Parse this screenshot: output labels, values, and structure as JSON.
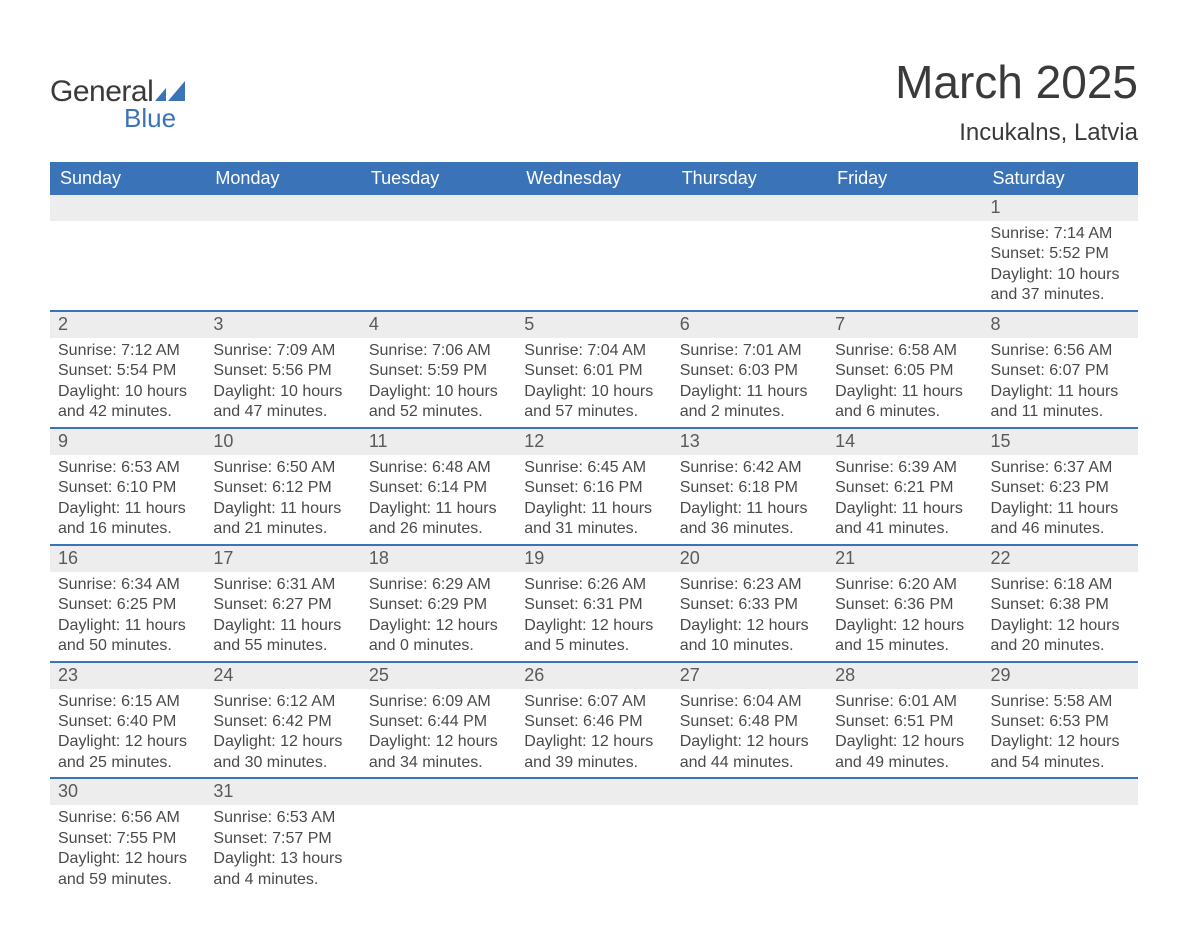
{
  "colors": {
    "header_bg": "#3b73b9",
    "header_text": "#ffffff",
    "daynum_bg": "#ededed",
    "body_text": "#4a4a4a",
    "week_border": "#3b73b9",
    "page_bg": "#ffffff",
    "logo_text": "#3a3a3a",
    "logo_blue": "#3b73b9"
  },
  "typography": {
    "title_fontsize": 46,
    "location_fontsize": 24,
    "dayhead_fontsize": 18,
    "daynum_fontsize": 18,
    "body_fontsize": 16,
    "font_family": "Arial"
  },
  "logo": {
    "line1": "General",
    "line2": "Blue"
  },
  "title": "March 2025",
  "location": "Incukalns, Latvia",
  "day_headers": [
    "Sunday",
    "Monday",
    "Tuesday",
    "Wednesday",
    "Thursday",
    "Friday",
    "Saturday"
  ],
  "weeks": [
    [
      {
        "num": "",
        "sunrise": "",
        "sunset": "",
        "daylight": ""
      },
      {
        "num": "",
        "sunrise": "",
        "sunset": "",
        "daylight": ""
      },
      {
        "num": "",
        "sunrise": "",
        "sunset": "",
        "daylight": ""
      },
      {
        "num": "",
        "sunrise": "",
        "sunset": "",
        "daylight": ""
      },
      {
        "num": "",
        "sunrise": "",
        "sunset": "",
        "daylight": ""
      },
      {
        "num": "",
        "sunrise": "",
        "sunset": "",
        "daylight": ""
      },
      {
        "num": "1",
        "sunrise": "Sunrise: 7:14 AM",
        "sunset": "Sunset: 5:52 PM",
        "daylight": "Daylight: 10 hours and 37 minutes."
      }
    ],
    [
      {
        "num": "2",
        "sunrise": "Sunrise: 7:12 AM",
        "sunset": "Sunset: 5:54 PM",
        "daylight": "Daylight: 10 hours and 42 minutes."
      },
      {
        "num": "3",
        "sunrise": "Sunrise: 7:09 AM",
        "sunset": "Sunset: 5:56 PM",
        "daylight": "Daylight: 10 hours and 47 minutes."
      },
      {
        "num": "4",
        "sunrise": "Sunrise: 7:06 AM",
        "sunset": "Sunset: 5:59 PM",
        "daylight": "Daylight: 10 hours and 52 minutes."
      },
      {
        "num": "5",
        "sunrise": "Sunrise: 7:04 AM",
        "sunset": "Sunset: 6:01 PM",
        "daylight": "Daylight: 10 hours and 57 minutes."
      },
      {
        "num": "6",
        "sunrise": "Sunrise: 7:01 AM",
        "sunset": "Sunset: 6:03 PM",
        "daylight": "Daylight: 11 hours and 2 minutes."
      },
      {
        "num": "7",
        "sunrise": "Sunrise: 6:58 AM",
        "sunset": "Sunset: 6:05 PM",
        "daylight": "Daylight: 11 hours and 6 minutes."
      },
      {
        "num": "8",
        "sunrise": "Sunrise: 6:56 AM",
        "sunset": "Sunset: 6:07 PM",
        "daylight": "Daylight: 11 hours and 11 minutes."
      }
    ],
    [
      {
        "num": "9",
        "sunrise": "Sunrise: 6:53 AM",
        "sunset": "Sunset: 6:10 PM",
        "daylight": "Daylight: 11 hours and 16 minutes."
      },
      {
        "num": "10",
        "sunrise": "Sunrise: 6:50 AM",
        "sunset": "Sunset: 6:12 PM",
        "daylight": "Daylight: 11 hours and 21 minutes."
      },
      {
        "num": "11",
        "sunrise": "Sunrise: 6:48 AM",
        "sunset": "Sunset: 6:14 PM",
        "daylight": "Daylight: 11 hours and 26 minutes."
      },
      {
        "num": "12",
        "sunrise": "Sunrise: 6:45 AM",
        "sunset": "Sunset: 6:16 PM",
        "daylight": "Daylight: 11 hours and 31 minutes."
      },
      {
        "num": "13",
        "sunrise": "Sunrise: 6:42 AM",
        "sunset": "Sunset: 6:18 PM",
        "daylight": "Daylight: 11 hours and 36 minutes."
      },
      {
        "num": "14",
        "sunrise": "Sunrise: 6:39 AM",
        "sunset": "Sunset: 6:21 PM",
        "daylight": "Daylight: 11 hours and 41 minutes."
      },
      {
        "num": "15",
        "sunrise": "Sunrise: 6:37 AM",
        "sunset": "Sunset: 6:23 PM",
        "daylight": "Daylight: 11 hours and 46 minutes."
      }
    ],
    [
      {
        "num": "16",
        "sunrise": "Sunrise: 6:34 AM",
        "sunset": "Sunset: 6:25 PM",
        "daylight": "Daylight: 11 hours and 50 minutes."
      },
      {
        "num": "17",
        "sunrise": "Sunrise: 6:31 AM",
        "sunset": "Sunset: 6:27 PM",
        "daylight": "Daylight: 11 hours and 55 minutes."
      },
      {
        "num": "18",
        "sunrise": "Sunrise: 6:29 AM",
        "sunset": "Sunset: 6:29 PM",
        "daylight": "Daylight: 12 hours and 0 minutes."
      },
      {
        "num": "19",
        "sunrise": "Sunrise: 6:26 AM",
        "sunset": "Sunset: 6:31 PM",
        "daylight": "Daylight: 12 hours and 5 minutes."
      },
      {
        "num": "20",
        "sunrise": "Sunrise: 6:23 AM",
        "sunset": "Sunset: 6:33 PM",
        "daylight": "Daylight: 12 hours and 10 minutes."
      },
      {
        "num": "21",
        "sunrise": "Sunrise: 6:20 AM",
        "sunset": "Sunset: 6:36 PM",
        "daylight": "Daylight: 12 hours and 15 minutes."
      },
      {
        "num": "22",
        "sunrise": "Sunrise: 6:18 AM",
        "sunset": "Sunset: 6:38 PM",
        "daylight": "Daylight: 12 hours and 20 minutes."
      }
    ],
    [
      {
        "num": "23",
        "sunrise": "Sunrise: 6:15 AM",
        "sunset": "Sunset: 6:40 PM",
        "daylight": "Daylight: 12 hours and 25 minutes."
      },
      {
        "num": "24",
        "sunrise": "Sunrise: 6:12 AM",
        "sunset": "Sunset: 6:42 PM",
        "daylight": "Daylight: 12 hours and 30 minutes."
      },
      {
        "num": "25",
        "sunrise": "Sunrise: 6:09 AM",
        "sunset": "Sunset: 6:44 PM",
        "daylight": "Daylight: 12 hours and 34 minutes."
      },
      {
        "num": "26",
        "sunrise": "Sunrise: 6:07 AM",
        "sunset": "Sunset: 6:46 PM",
        "daylight": "Daylight: 12 hours and 39 minutes."
      },
      {
        "num": "27",
        "sunrise": "Sunrise: 6:04 AM",
        "sunset": "Sunset: 6:48 PM",
        "daylight": "Daylight: 12 hours and 44 minutes."
      },
      {
        "num": "28",
        "sunrise": "Sunrise: 6:01 AM",
        "sunset": "Sunset: 6:51 PM",
        "daylight": "Daylight: 12 hours and 49 minutes."
      },
      {
        "num": "29",
        "sunrise": "Sunrise: 5:58 AM",
        "sunset": "Sunset: 6:53 PM",
        "daylight": "Daylight: 12 hours and 54 minutes."
      }
    ],
    [
      {
        "num": "30",
        "sunrise": "Sunrise: 6:56 AM",
        "sunset": "Sunset: 7:55 PM",
        "daylight": "Daylight: 12 hours and 59 minutes."
      },
      {
        "num": "31",
        "sunrise": "Sunrise: 6:53 AM",
        "sunset": "Sunset: 7:57 PM",
        "daylight": "Daylight: 13 hours and 4 minutes."
      },
      {
        "num": "",
        "sunrise": "",
        "sunset": "",
        "daylight": ""
      },
      {
        "num": "",
        "sunrise": "",
        "sunset": "",
        "daylight": ""
      },
      {
        "num": "",
        "sunrise": "",
        "sunset": "",
        "daylight": ""
      },
      {
        "num": "",
        "sunrise": "",
        "sunset": "",
        "daylight": ""
      },
      {
        "num": "",
        "sunrise": "",
        "sunset": "",
        "daylight": ""
      }
    ]
  ]
}
